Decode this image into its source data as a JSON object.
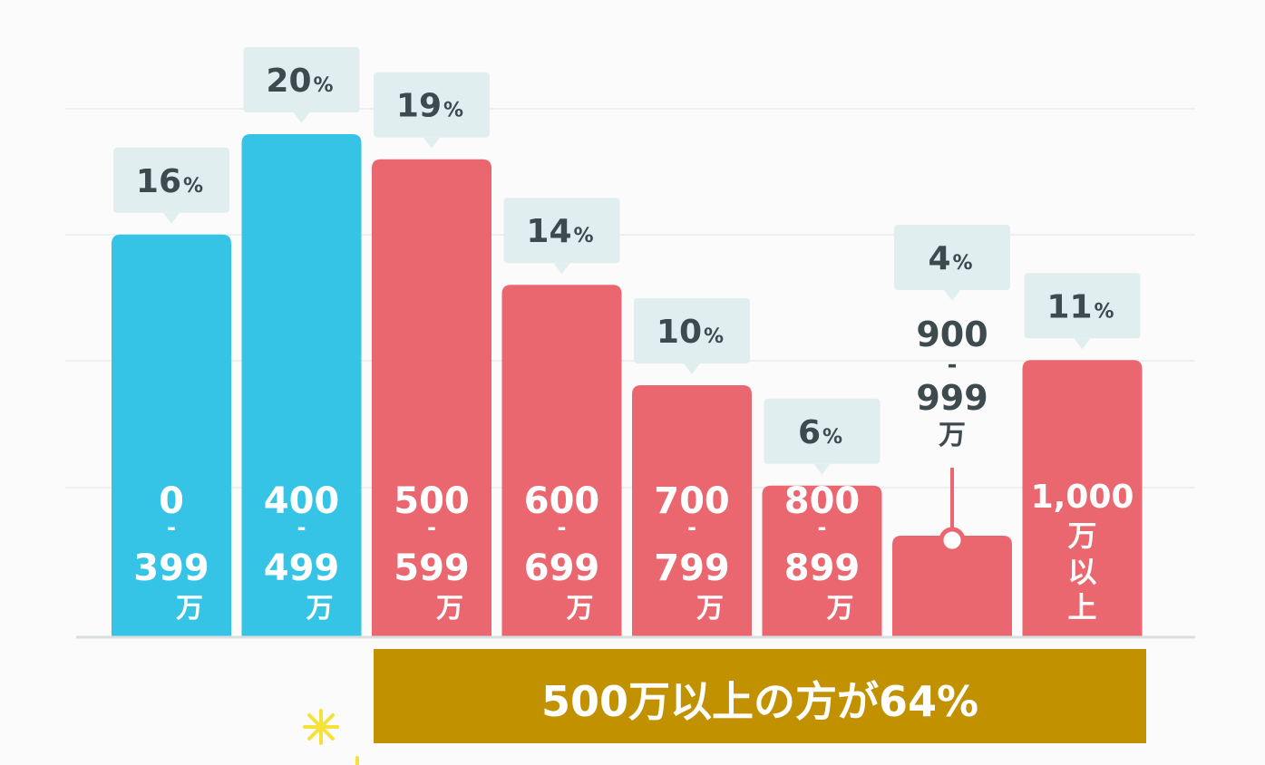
{
  "chart_data": {
    "type": "bar",
    "categories": [
      [
        "0",
        "-",
        "399",
        "万"
      ],
      [
        "400",
        "-",
        "499",
        "万"
      ],
      [
        "500",
        "-",
        "599",
        "万"
      ],
      [
        "600",
        "-",
        "699",
        "万"
      ],
      [
        "700",
        "-",
        "799",
        "万"
      ],
      [
        "800",
        "-",
        "899",
        "万"
      ],
      [
        "900",
        "-",
        "999",
        "万"
      ],
      [
        "1,000",
        "万",
        "以",
        "上"
      ]
    ],
    "values": [
      16,
      20,
      19,
      14,
      10,
      6,
      4,
      11
    ],
    "value_labels": [
      "16",
      "20",
      "19",
      "14",
      "10",
      "6",
      "4",
      "11"
    ],
    "value_unit": "%",
    "bar_colors": [
      "#35c3e6",
      "#35c3e6",
      "#ea6770",
      "#ea6770",
      "#ea6770",
      "#ea6770",
      "#ea6770",
      "#ea6770"
    ],
    "title": "",
    "xlabel": "",
    "ylabel": "",
    "ylim": [
      0,
      20
    ],
    "grid": true
  },
  "summary": {
    "text": "500万以上の方が64%",
    "color": "#c19100"
  },
  "colors": {
    "low_income": "#35c3e6",
    "high_income": "#ea6770",
    "callout": "#e1eef0",
    "text_dark": "#3d4a4e",
    "sparkle": "#f5e23a"
  }
}
